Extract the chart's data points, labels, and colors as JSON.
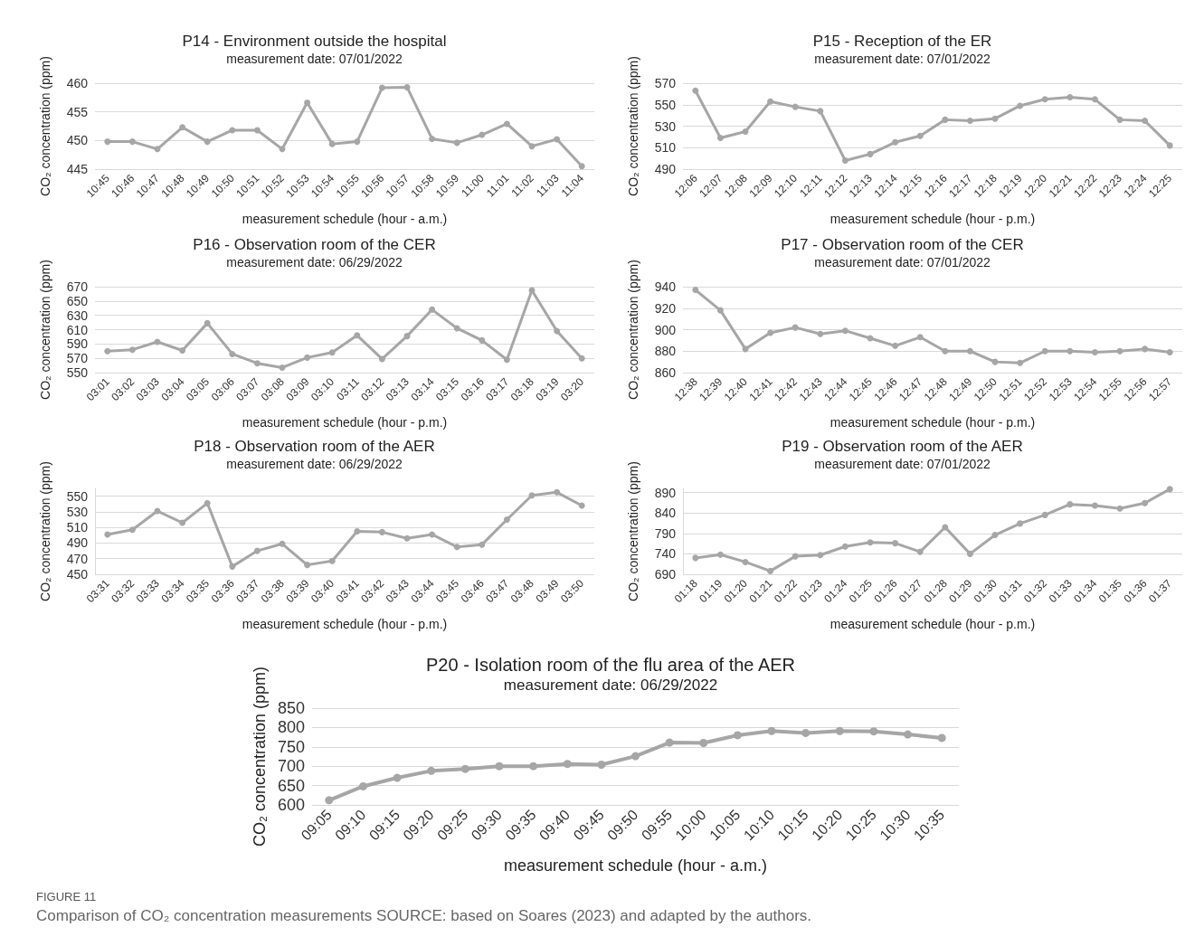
{
  "chart_data": [
    {
      "type": "line",
      "title": "P14 - Environment outside the hospital",
      "subtitle": "measurement date: 07/01/2022",
      "xlabel": "measurement schedule (hour - a.m.)",
      "ylabel": "CO₂ concentration (ppm)",
      "categories": [
        "10:45",
        "10:46",
        "10:47",
        "10:48",
        "10:49",
        "10:50",
        "10:51",
        "10:52",
        "10:53",
        "10:54",
        "10:55",
        "10:56",
        "10:57",
        "10:58",
        "10:59",
        "11:00",
        "11:01",
        "11:02",
        "11:03",
        "11:04"
      ],
      "series": [
        {
          "color": "#a6a6a6",
          "values": [
            449.8,
            449.8,
            448.5,
            452.3,
            449.8,
            451.8,
            451.8,
            448.5,
            456.6,
            449.4,
            449.8,
            459.2,
            459.3,
            450.3,
            449.6,
            451.0,
            452.9,
            449.0,
            450.2,
            445.5
          ]
        }
      ],
      "ylim": [
        445,
        460
      ],
      "yticks": [
        445,
        450,
        455,
        460
      ],
      "grid": "y",
      "marker": "circle",
      "line_style": "solid"
    },
    {
      "type": "line",
      "title": "P15 - Reception of the ER",
      "subtitle": "measurement date: 07/01/2022",
      "xlabel": "measurement schedule (hour - p.m.)",
      "ylabel": "CO₂ concentration (ppm)",
      "categories": [
        "12:06",
        "12:07",
        "12:08",
        "12:09",
        "12:10",
        "12:11",
        "12:12",
        "12:13",
        "12:14",
        "12:15",
        "12:16",
        "12:17",
        "12:18",
        "12:19",
        "12:20",
        "12:21",
        "12:22",
        "12:23",
        "12:24",
        "12:25"
      ],
      "series": [
        {
          "color": "#a6a6a6",
          "values": [
            563,
            519,
            525,
            553,
            548,
            544,
            498,
            504,
            515,
            521,
            536,
            535,
            537,
            549,
            555,
            557,
            555,
            536,
            535,
            512
          ]
        }
      ],
      "ylim": [
        490,
        570
      ],
      "yticks": [
        490,
        510,
        530,
        550,
        570
      ],
      "grid": "y",
      "marker": "circle",
      "line_style": "solid"
    },
    {
      "type": "line",
      "title": "P16 - Observation room of the CER",
      "subtitle": "measurement date: 06/29/2022",
      "xlabel": "measurement schedule (hour - p.m.)",
      "ylabel": "CO₂ concentration (ppm)",
      "categories": [
        "03:01",
        "03:02",
        "03:03",
        "03:04",
        "03:05",
        "03:06",
        "03:07",
        "03:08",
        "03:09",
        "03:10",
        "03:11",
        "03:12",
        "03:13",
        "03:14",
        "03:15",
        "03:16",
        "03:17",
        "03:18",
        "03:19",
        "03:20"
      ],
      "series": [
        {
          "color": "#a6a6a6",
          "values": [
            580,
            582,
            593,
            581,
            619,
            576,
            563,
            557,
            571,
            578,
            602,
            569,
            601,
            638,
            612,
            595,
            568,
            665,
            608,
            570
          ]
        }
      ],
      "ylim": [
        550,
        670
      ],
      "yticks": [
        550,
        570,
        590,
        610,
        630,
        650,
        670
      ],
      "grid": "y",
      "marker": "circle",
      "line_style": "solid"
    },
    {
      "type": "line",
      "title": "P17 - Observation room of the CER",
      "subtitle": "measurement date: 07/01/2022",
      "xlabel": "measurement schedule (hour - p.m.)",
      "ylabel": "CO₂ concentration (ppm)",
      "categories": [
        "12:38",
        "12:39",
        "12:40",
        "12:41",
        "12:42",
        "12:43",
        "12:44",
        "12:45",
        "12:46",
        "12:47",
        "12:48",
        "12:49",
        "12:50",
        "12:51",
        "12:52",
        "12:53",
        "12:54",
        "12:55",
        "12:56",
        "12:57"
      ],
      "series": [
        {
          "color": "#a6a6a6",
          "values": [
            937,
            918,
            882,
            897,
            902,
            896,
            899,
            892,
            885,
            893,
            880,
            880,
            870,
            869,
            880,
            880,
            879,
            880,
            882,
            879
          ]
        }
      ],
      "ylim": [
        860,
        940
      ],
      "yticks": [
        860,
        880,
        900,
        920,
        940
      ],
      "grid": "y",
      "marker": "circle",
      "line_style": "solid"
    },
    {
      "type": "line",
      "title": "P18 - Observation room of the AER",
      "subtitle": "measurement date: 06/29/2022",
      "xlabel": "measurement schedule (hour - p.m.)",
      "ylabel": "CO₂ concentration (ppm)",
      "categories": [
        "03:31",
        "03:32",
        "03:33",
        "03:34",
        "03:35",
        "03:36",
        "03:37",
        "03:38",
        "03:39",
        "03:40",
        "03:41",
        "03:42",
        "03:43",
        "03:44",
        "03:45",
        "03:46",
        "03:47",
        "03:48",
        "03:49",
        "03:50"
      ],
      "series": [
        {
          "color": "#a6a6a6",
          "values": [
            501,
            507,
            531,
            516,
            541,
            460,
            480,
            489,
            462,
            467,
            505,
            504,
            496,
            501,
            485,
            488,
            520,
            551,
            555,
            538
          ]
        }
      ],
      "ylim": [
        450,
        560
      ],
      "yticks": [
        450,
        470,
        490,
        510,
        530,
        550
      ],
      "grid": "y",
      "marker": "circle",
      "line_style": "solid"
    },
    {
      "type": "line",
      "title": "P19 - Observation room of the AER",
      "subtitle": "measurement date: 07/01/2022",
      "xlabel": "measurement schedule (hour - p.m.)",
      "ylabel": "CO₂ concentration (ppm)",
      "categories": [
        "01:18",
        "01:19",
        "01:20",
        "01:21",
        "01:22",
        "01:23",
        "01:24",
        "01:25",
        "01:26",
        "01:27",
        "01:28",
        "01:29",
        "01:30",
        "01:31",
        "01:32",
        "01:33",
        "01:34",
        "01:35",
        "01:36",
        "01:37"
      ],
      "series": [
        {
          "color": "#a6a6a6",
          "values": [
            730,
            738,
            720,
            698,
            734,
            737,
            758,
            768,
            766,
            745,
            805,
            740,
            786,
            814,
            835,
            861,
            858,
            851,
            864,
            898
          ]
        }
      ],
      "ylim": [
        690,
        900
      ],
      "yticks": [
        690,
        740,
        790,
        840,
        890
      ],
      "grid": "y",
      "marker": "circle",
      "line_style": "solid"
    },
    {
      "type": "line",
      "title": "P20 - Isolation room of the flu area of the AER",
      "subtitle": "measurement date: 06/29/2022",
      "xlabel": "measurement schedule (hour - a.m.)",
      "ylabel": "CO₂ concentration (ppm)",
      "categories": [
        "09:05",
        "09:10",
        "09:15",
        "09:20",
        "09:25",
        "09:30",
        "09:35",
        "09:40",
        "09:45",
        "09:50",
        "09:55",
        "10:00",
        "10:05",
        "10:10",
        "10:15",
        "10:20",
        "10:25",
        "10:30",
        "10:35"
      ],
      "series": [
        {
          "color": "#a6a6a6",
          "values": [
            612,
            648,
            670,
            688,
            693,
            700,
            700,
            706,
            704,
            726,
            761,
            760,
            780,
            791,
            786,
            791,
            790,
            782,
            773
          ]
        }
      ],
      "ylim": [
        600,
        850
      ],
      "yticks": [
        600,
        650,
        700,
        750,
        800,
        850
      ],
      "grid": "y",
      "marker": "circle",
      "line_style": "solid",
      "annotations": [
        "FIGURE 11",
        "Comparison of CO₂ concentration measurements SOURCE: based on Soares (2023) and adapted by the authors."
      ]
    }
  ]
}
